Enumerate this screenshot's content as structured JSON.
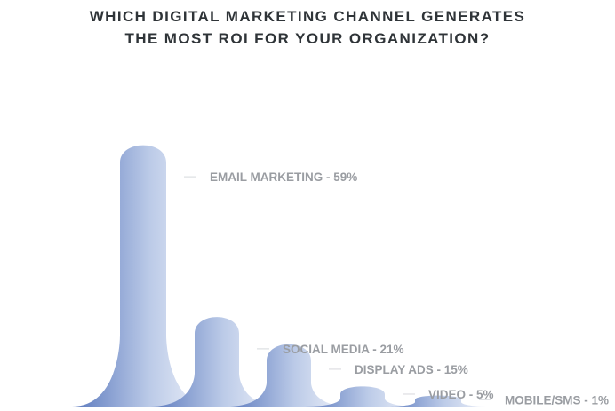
{
  "title_lines": [
    "WHICH DIGITAL MARKETING CHANNEL GENERATES",
    "THE MOST ROI FOR YOUR ORGANIZATION?"
  ],
  "chart_data": {
    "type": "bar",
    "title": "WHICH DIGITAL MARKETING CHANNEL GENERATES THE MOST ROI FOR YOUR ORGANIZATION?",
    "categories": [
      "EMAIL MARKETING",
      "SOCIAL MEDIA",
      "DISPLAY ADS",
      "VIDEO",
      "MOBILE/SMS"
    ],
    "values": [
      59,
      21,
      15,
      5,
      1
    ],
    "unit": "%",
    "labels": [
      "EMAIL MARKETING - 59%",
      "SOCIAL MEDIA - 21%",
      "DISPLAY ADS - 15%",
      "VIDEO - 5%",
      "MOBILE/SMS - 1%"
    ],
    "gradient_colors": [
      "#5a78bd",
      "#bccbe8",
      "#f3f5fb"
    ],
    "leader_color": "#d6d8dc"
  }
}
